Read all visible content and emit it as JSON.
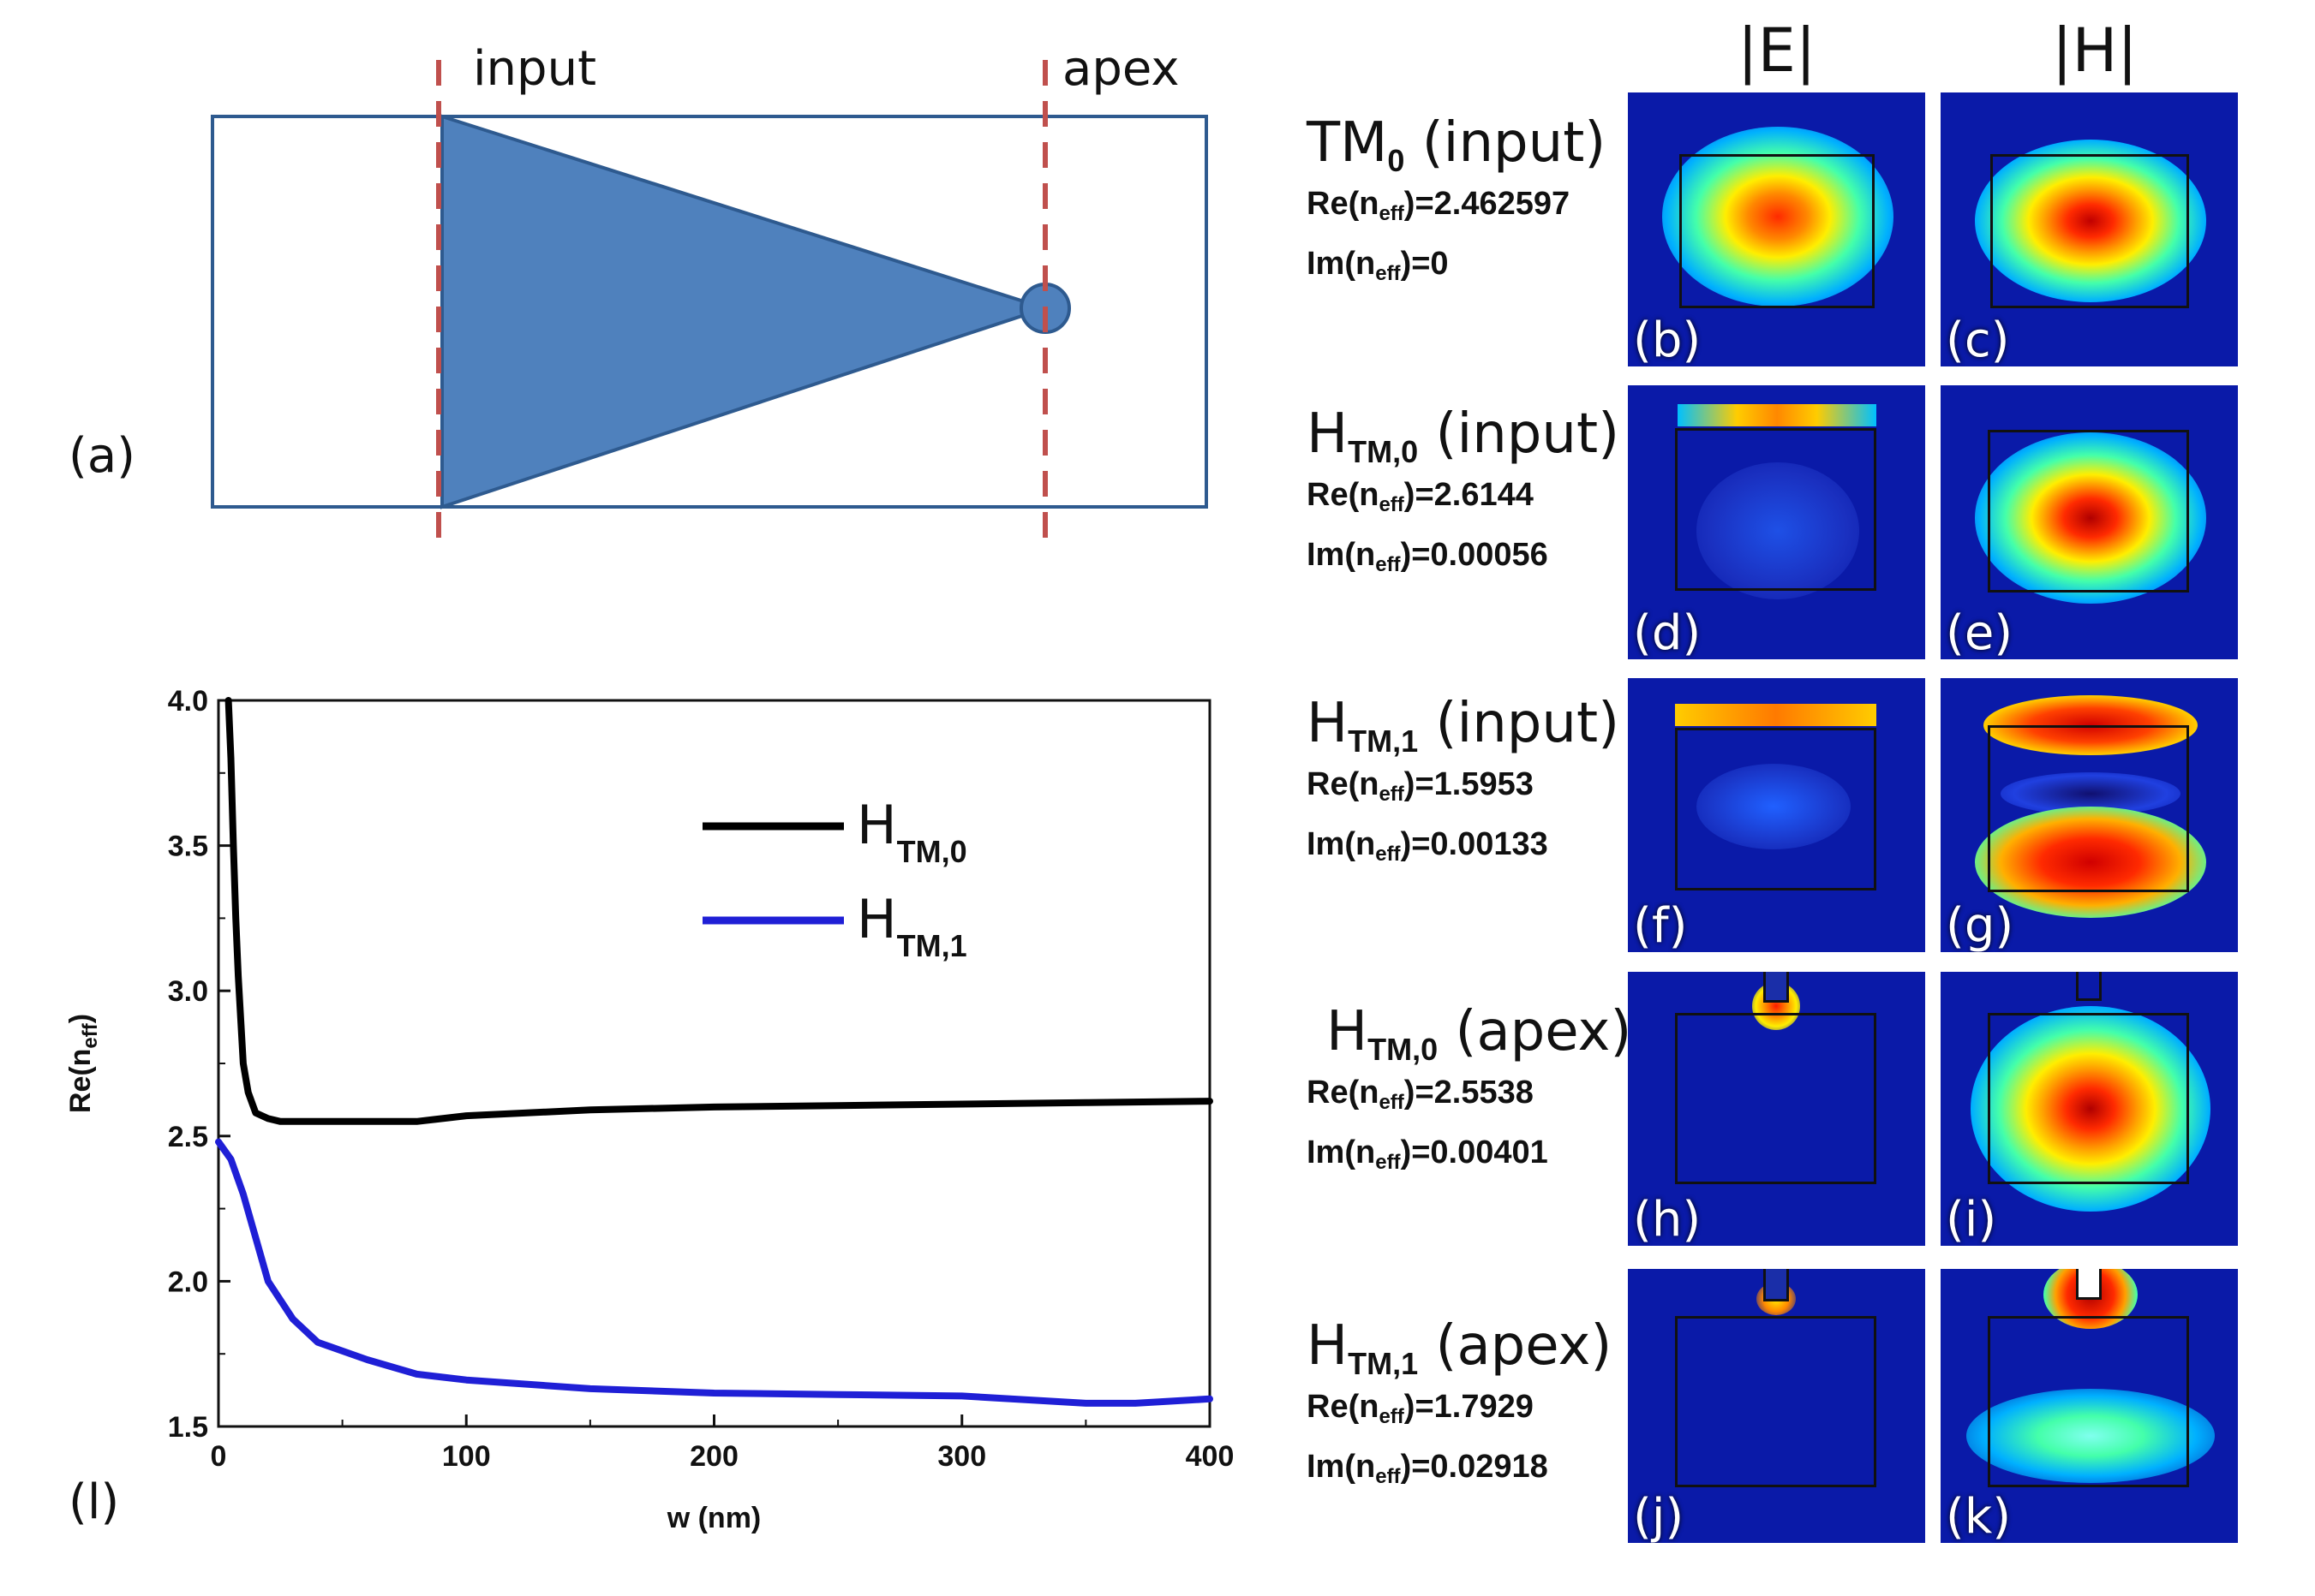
{
  "panel_a": {
    "label": "(a)",
    "input_label": "input",
    "apex_label": "apex",
    "taper_color": "#4f81bd",
    "cut_color": "#c0504d"
  },
  "column_headers": {
    "e_field": "|E|",
    "h_field": "|H|"
  },
  "modes": [
    {
      "name": "TM",
      "sub": "0",
      "position": "(input)",
      "re": "Re(n",
      "re_sub": "eff",
      "re_val": ")=2.462597",
      "im": "Im(n",
      "im_sub": "eff",
      "im_val": ")=0",
      "e_label": "(b)",
      "h_label": "(c)"
    },
    {
      "name": "H",
      "sub": "TM,0",
      "position": "(input)",
      "re": "Re(n",
      "re_sub": "eff",
      "re_val": ")=2.6144",
      "im": "Im(n",
      "im_sub": "eff",
      "im_val": ")=0.00056",
      "e_label": "(d)",
      "h_label": "(e)"
    },
    {
      "name": "H",
      "sub": "TM,1",
      "position": "(input)",
      "re": "Re(n",
      "re_sub": "eff",
      "re_val": ")=1.5953",
      "im": "Im(n",
      "im_sub": "eff",
      "im_val": ")=0.00133",
      "e_label": "(f)",
      "h_label": "(g)"
    },
    {
      "name": "H",
      "sub": "TM,0",
      "position": "(apex)",
      "re": "Re(n",
      "re_sub": "eff",
      "re_val": ")=2.5538",
      "im": "Im(n",
      "im_sub": "eff",
      "im_val": ")=0.00401",
      "e_label": "(h)",
      "h_label": "(i)"
    },
    {
      "name": "H",
      "sub": "TM,1",
      "position": "(apex)",
      "re": "Re(n",
      "re_sub": "eff",
      "re_val": ")=1.7929",
      "im": "Im(n",
      "im_sub": "eff",
      "im_val": ")=0.02918",
      "e_label": "(j)",
      "h_label": "(k)"
    }
  ],
  "chart_data": {
    "type": "line",
    "panel_label": "(l)",
    "xlabel": "w (nm)",
    "ylabel": "Re(n",
    "ylabel_sub": "eff",
    "ylabel_close": ")",
    "xlim": [
      0,
      400
    ],
    "ylim": [
      1.5,
      4.0
    ],
    "xticks": [
      "0",
      "100",
      "200",
      "300",
      "400"
    ],
    "yticks": [
      "1.5",
      "2.0",
      "2.5",
      "3.0",
      "3.5",
      "4.0"
    ],
    "legend_position": "top-right",
    "series": [
      {
        "name": "H",
        "name_sub": "TM,0",
        "color": "#000000",
        "x": [
          4,
          5,
          6,
          7,
          8,
          10,
          12,
          15,
          20,
          25,
          30,
          50,
          80,
          100,
          150,
          200,
          250,
          300,
          350,
          400
        ],
        "y": [
          4.0,
          3.8,
          3.5,
          3.25,
          3.05,
          2.75,
          2.65,
          2.58,
          2.56,
          2.55,
          2.55,
          2.55,
          2.55,
          2.57,
          2.59,
          2.6,
          2.605,
          2.61,
          2.615,
          2.62
        ]
      },
      {
        "name": "H",
        "name_sub": "TM,1",
        "color": "#1f1fd6",
        "x": [
          0,
          5,
          10,
          15,
          20,
          30,
          40,
          60,
          80,
          100,
          150,
          200,
          250,
          300,
          350,
          370,
          400
        ],
        "y": [
          2.48,
          2.42,
          2.3,
          2.15,
          2.0,
          1.87,
          1.79,
          1.73,
          1.68,
          1.66,
          1.63,
          1.615,
          1.61,
          1.605,
          1.58,
          1.58,
          1.595
        ]
      }
    ]
  }
}
